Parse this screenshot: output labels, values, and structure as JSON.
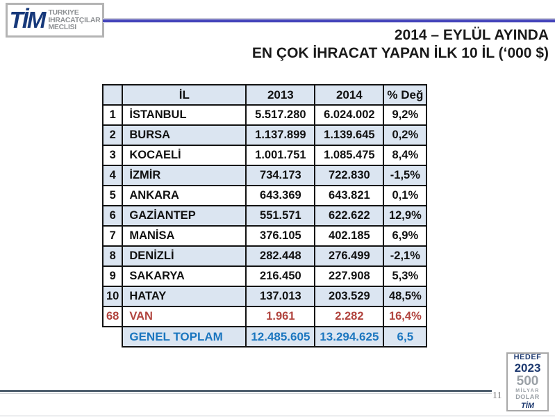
{
  "logo": {
    "tim": "TİM",
    "line1": "TURKIYE",
    "line2": "IHRACATÇILAR",
    "line3": "MECLISI"
  },
  "title": {
    "line1": "2014 – EYLÜL AYINDA",
    "line2": "EN ÇOK İHRACAT YAPAN İLK 10 İL (‘000 $)"
  },
  "table": {
    "headers": [
      "",
      "İL",
      "2013",
      "2014",
      "% Değ"
    ],
    "rows": [
      {
        "style": "default",
        "cells": [
          "1",
          "İSTANBUL",
          "5.517.280",
          "6.024.002",
          "9,2%"
        ]
      },
      {
        "style": "default",
        "cells": [
          "2",
          "BURSA",
          "1.137.899",
          "1.139.645",
          "0,2%"
        ]
      },
      {
        "style": "default",
        "cells": [
          "3",
          "KOCAELİ",
          "1.001.751",
          "1.085.475",
          "8,4%"
        ]
      },
      {
        "style": "default",
        "cells": [
          "4",
          "İZMİR",
          "734.173",
          "722.830",
          "-1,5%"
        ]
      },
      {
        "style": "default",
        "cells": [
          "5",
          "ANKARA",
          "643.369",
          "643.821",
          "0,1%"
        ]
      },
      {
        "style": "default",
        "cells": [
          "6",
          "GAZİANTEP",
          "551.571",
          "622.622",
          "12,9%"
        ]
      },
      {
        "style": "default",
        "cells": [
          "7",
          "MANİSA",
          "376.105",
          "402.185",
          "6,9%"
        ]
      },
      {
        "style": "default",
        "cells": [
          "8",
          "DENİZLİ",
          "282.448",
          "276.499",
          "-2,1%"
        ]
      },
      {
        "style": "default",
        "cells": [
          "9",
          "SAKARYA",
          "216.450",
          "227.908",
          "5,3%"
        ]
      },
      {
        "style": "default",
        "cells": [
          "10",
          "HATAY",
          "137.013",
          "203.529",
          "48,5%"
        ]
      },
      {
        "style": "red",
        "cells": [
          "68",
          "VAN",
          "1.961",
          "2.282",
          "16,4%"
        ]
      },
      {
        "style": "total",
        "cells": [
          "",
          "GENEL TOPLAM",
          "12.485.605",
          "13.294.625",
          "6,5"
        ]
      }
    ]
  },
  "footer": {
    "page_number": "11"
  },
  "badge": {
    "hedef": "HEDEF",
    "year": "2023",
    "amount": "500",
    "milyar": "MİLYAR",
    "dolar": "DOLAR",
    "tim": "TİM"
  },
  "colors": {
    "rule_blue": "#4545bb",
    "rule_dark": "#50606f",
    "row_fill": "#dbe5f1",
    "van_red": "#b1443e",
    "total_blue": "#1b76bf",
    "logo_navy": "#16387a",
    "logo_gray": "#8e9194"
  }
}
